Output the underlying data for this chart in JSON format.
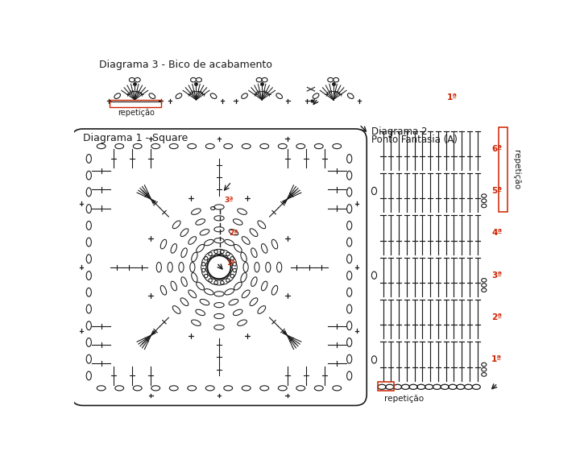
{
  "bg_color": "#ffffff",
  "line_color": "#1a1a1a",
  "red_color": "#cc2200",
  "title_d3": "Diagrama 3 - Bico de acabamento",
  "title_d1": "Diagrama 1 - Square",
  "title_d2_1": "Diagrama 2 -",
  "title_d2_2": "Ponto Fantasia (A)",
  "label_repeticao": "repetição",
  "labels_d2": [
    "6ª",
    "5ª",
    "4ª",
    "3ª",
    "2ª",
    "1ª"
  ]
}
